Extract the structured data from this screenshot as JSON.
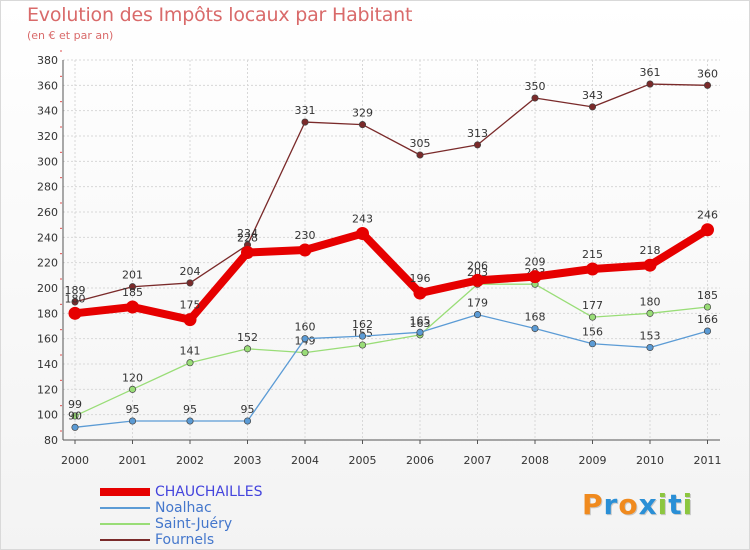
{
  "header": {
    "title": "Evolution des Impôts locaux par Habitant",
    "subtitle": "(en € et par an)"
  },
  "logo": {
    "text": "Proxiti",
    "letter_colors": [
      "#f08a1e",
      "#2a8fd6",
      "#f08a1e",
      "#2a8fd6",
      "#8cc63f",
      "#2a8fd6",
      "#8cc63f"
    ]
  },
  "chart_data": {
    "type": "line",
    "title": "Evolution des Impôts locaux par Habitant",
    "subtitle": "(en € et par an)",
    "xlabel": "",
    "ylabel": "",
    "ylim": [
      80,
      380
    ],
    "yticks": [
      80,
      100,
      120,
      140,
      160,
      180,
      200,
      220,
      240,
      260,
      280,
      300,
      320,
      340,
      360,
      380
    ],
    "grid": true,
    "legend_position": "bottom-left",
    "categories": [
      "2000",
      "2001",
      "2002",
      "2003",
      "2004",
      "2005",
      "2006",
      "2007",
      "2008",
      "2009",
      "2010",
      "2011"
    ],
    "series": [
      {
        "name": "Fournels",
        "color": "#7a2a2a",
        "values": [
          189,
          201,
          204,
          234,
          331,
          329,
          305,
          313,
          350,
          343,
          361,
          360
        ],
        "labels": [
          "189",
          "201",
          "204",
          "234",
          "331",
          "329",
          "305",
          "313",
          "350",
          "343",
          "361",
          "360"
        ]
      },
      {
        "name": "Saint-Juéry",
        "color": "#99dd77",
        "values": [
          99,
          120,
          141,
          152,
          149,
          155,
          163,
          203,
          203,
          177,
          180,
          185
        ],
        "labels": [
          "99",
          "120",
          "141",
          "152",
          "149",
          "155",
          "163",
          "203",
          "203",
          "177",
          "180",
          "185"
        ]
      },
      {
        "name": "Noalhac",
        "color": "#5b9bd5",
        "values": [
          90,
          95,
          95,
          95,
          160,
          162,
          165,
          179,
          168,
          156,
          153,
          166
        ],
        "labels": [
          "90",
          "95",
          "95",
          "95",
          "160",
          "162",
          "165",
          "179",
          "168",
          "156",
          "153",
          "166"
        ]
      },
      {
        "name": "CHAUCHAILLES",
        "color": "#e60000",
        "values": [
          180,
          185,
          175,
          228,
          230,
          243,
          196,
          206,
          209,
          215,
          218,
          246
        ],
        "labels": [
          "180",
          "185",
          "175",
          "228",
          "230",
          "243",
          "196",
          "206",
          "209",
          "215",
          "218",
          "246"
        ]
      }
    ],
    "legend": [
      {
        "name": "CHAUCHAILLES",
        "color": "#e60000",
        "text_color": "#4444dd"
      },
      {
        "name": "Noalhac",
        "color": "#5b9bd5",
        "text_color": "#4477cc"
      },
      {
        "name": "Saint-Juéry",
        "color": "#99dd77",
        "text_color": "#4477cc"
      },
      {
        "name": "Fournels",
        "color": "#7a2a2a",
        "text_color": "#4477cc"
      }
    ]
  }
}
